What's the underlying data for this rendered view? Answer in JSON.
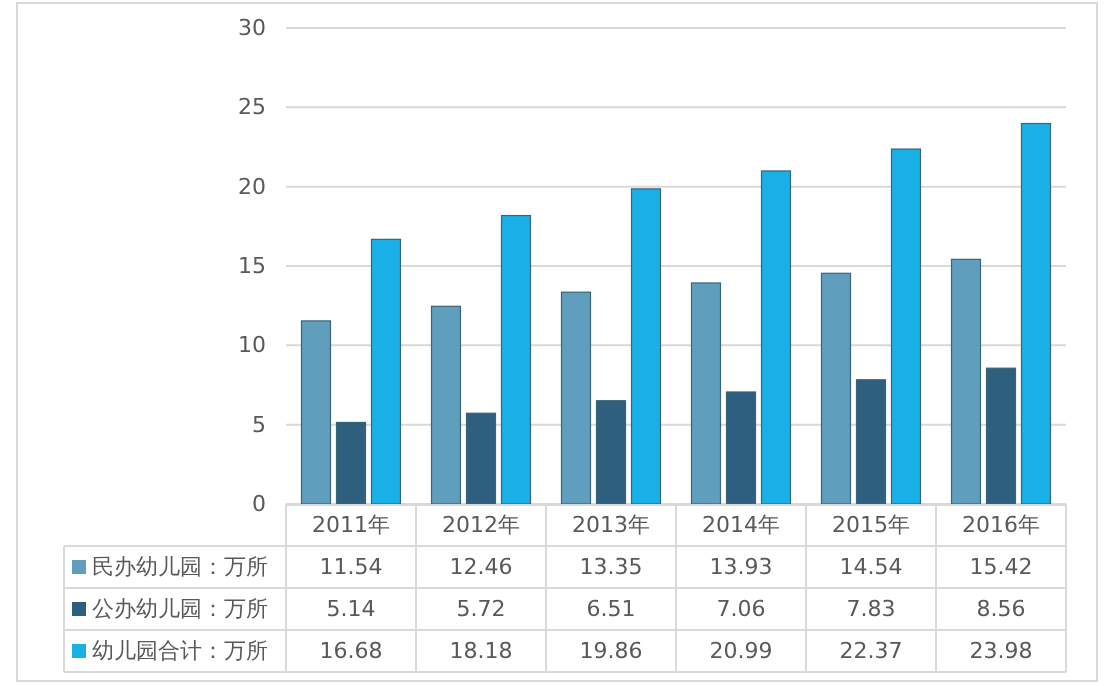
{
  "chart_data": {
    "type": "bar",
    "categories": [
      "2011年",
      "2012年",
      "2013年",
      "2014年",
      "2015年",
      "2016年"
    ],
    "series": [
      {
        "name": "民办幼儿园：万所",
        "color": "#5f9fbd",
        "values": [
          11.54,
          12.46,
          13.35,
          13.93,
          14.54,
          15.42
        ]
      },
      {
        "name": "公办幼儿园：万所",
        "color": "#2f5f7e",
        "values": [
          5.14,
          5.72,
          6.51,
          7.06,
          7.83,
          8.56
        ]
      },
      {
        "name": "幼儿园合计：万所",
        "color": "#18b0e6",
        "values": [
          16.68,
          18.18,
          19.86,
          20.99,
          22.37,
          23.98
        ]
      }
    ],
    "ylim": [
      0,
      30
    ],
    "yticks": [
      0,
      5,
      10,
      15,
      20,
      25,
      30
    ],
    "grid": "y",
    "legend": "bottom",
    "data_labels": true
  }
}
